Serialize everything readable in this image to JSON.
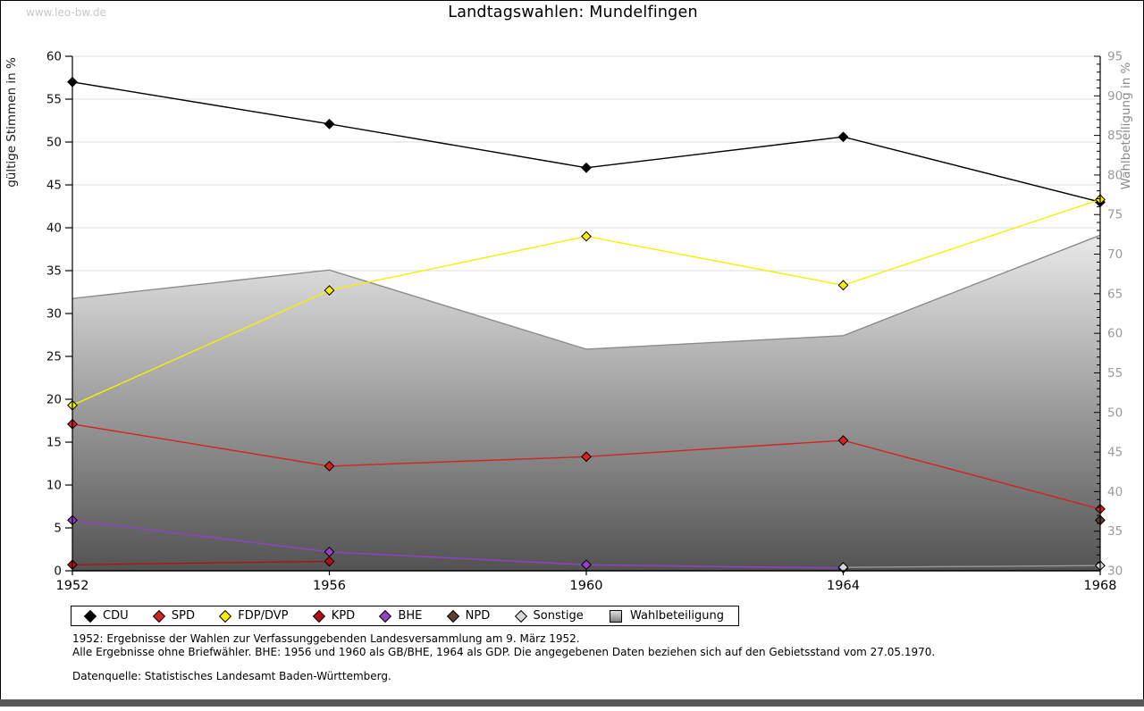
{
  "page": {
    "watermark": "www.leo-bw.de",
    "title": "Landtagswahlen: Mundelfingen",
    "bottom_bar_color": "#58585b"
  },
  "chart_data": {
    "type": "line",
    "title": "Landtagswahlen: Mundelfingen",
    "x_years": [
      1952,
      1956,
      1960,
      1964,
      1968
    ],
    "xlim": [
      1952,
      1968
    ],
    "ylabel_left": "gültige Stimmen in %",
    "ylabel_right": "Wahlbeteiligung in %",
    "ylim_left": [
      0,
      60
    ],
    "ylim_right": [
      30,
      95
    ],
    "ytick_step_left": 5,
    "ytick_step_right": 5,
    "ytick_minor_step_right": 1,
    "grid": true,
    "grid_color": "#dcdcdc",
    "axis_color": "#000000",
    "left_tick_label_color": "#111111",
    "right_tick_label_color": "#9a9a9a",
    "legend_position": "bottom",
    "series": [
      {
        "name": "CDU",
        "axis": "left",
        "color": "#000000",
        "marker": "diamond",
        "values": [
          57.0,
          52.1,
          47.0,
          50.6,
          43.0
        ]
      },
      {
        "name": "SPD",
        "axis": "left",
        "color": "#d42320",
        "marker": "diamond",
        "values": [
          17.1,
          12.2,
          13.3,
          15.2,
          7.2
        ]
      },
      {
        "name": "FDP/DVP",
        "axis": "left",
        "color": "#f7ef00",
        "marker": "diamond",
        "values": [
          19.3,
          32.7,
          39.0,
          33.3,
          43.3
        ]
      },
      {
        "name": "KPD",
        "axis": "left",
        "color": "#b11116",
        "marker": "diamond",
        "values": [
          0.7,
          1.1,
          null,
          null,
          null
        ]
      },
      {
        "name": "BHE",
        "axis": "left",
        "color": "#9440c8",
        "marker": "diamond",
        "values": [
          5.9,
          2.2,
          0.7,
          0.3,
          null
        ]
      },
      {
        "name": "NPD",
        "axis": "left",
        "color": "#5c4330",
        "marker": "diamond",
        "values": [
          null,
          null,
          null,
          null,
          5.9
        ]
      },
      {
        "name": "Sonstige",
        "axis": "left",
        "color": "#9a9a9a",
        "marker_fill": "#d6d6d6",
        "marker": "diamond",
        "values": [
          null,
          null,
          null,
          0.4,
          0.6
        ]
      }
    ],
    "area_series": {
      "name": "Wahlbeteiligung",
      "axis": "right",
      "stroke": "#8c8c8c",
      "gradient_top": "#f2f2f2",
      "gradient_bottom": "#525252",
      "values": [
        64.4,
        68.0,
        58.0,
        59.7,
        72.4
      ]
    }
  },
  "footnotes": {
    "line1": "1952: Ergebnisse der Wahlen zur Verfassunggebenden Landesversammlung am 9. März 1952.",
    "line2": "Alle Ergebnisse ohne Briefwähler. BHE: 1956 und 1960 als GB/BHE, 1964 als GDP. Die angegebenen Daten beziehen sich auf den Gebietsstand vom 27.05.1970.",
    "source": "Datenquelle: Statistisches Landesamt Baden-Württemberg."
  }
}
